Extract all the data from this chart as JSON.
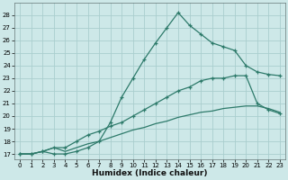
{
  "xlabel": "Humidex (Indice chaleur)",
  "background_color": "#cde8e8",
  "grid_color": "#aacece",
  "line_color": "#2d7a6a",
  "xlim": [
    -0.5,
    23.5
  ],
  "ylim": [
    16.6,
    29.0
  ],
  "xticks": [
    0,
    1,
    2,
    3,
    4,
    5,
    6,
    7,
    8,
    9,
    10,
    11,
    12,
    13,
    14,
    15,
    16,
    17,
    18,
    19,
    20,
    21,
    22,
    23
  ],
  "yticks": [
    17,
    18,
    19,
    20,
    21,
    22,
    23,
    24,
    25,
    26,
    27,
    28
  ],
  "curve1_x": [
    0,
    1,
    2,
    3,
    4,
    5,
    6,
    7,
    8,
    9,
    10,
    11,
    12,
    13,
    14,
    15,
    16,
    17,
    18,
    19,
    20,
    21,
    22,
    23
  ],
  "curve1_y": [
    17.0,
    17.0,
    17.2,
    17.0,
    17.0,
    17.2,
    17.5,
    18.0,
    19.5,
    21.5,
    23.0,
    24.5,
    25.8,
    27.0,
    28.2,
    27.2,
    26.5,
    25.8,
    25.5,
    25.2,
    24.0,
    23.5,
    23.3,
    23.2
  ],
  "curve2_x": [
    0,
    1,
    2,
    3,
    4,
    5,
    6,
    7,
    8,
    9,
    10,
    11,
    12,
    13,
    14,
    15,
    16,
    17,
    18,
    19,
    20,
    21,
    22,
    23
  ],
  "curve2_y": [
    17.0,
    17.0,
    17.2,
    17.5,
    17.5,
    18.0,
    18.5,
    18.8,
    19.2,
    19.5,
    20.0,
    20.5,
    21.0,
    21.5,
    22.0,
    22.3,
    22.8,
    23.0,
    23.0,
    23.2,
    23.2,
    21.0,
    20.5,
    20.2
  ],
  "curve3_x": [
    0,
    1,
    2,
    3,
    4,
    5,
    6,
    7,
    8,
    9,
    10,
    11,
    12,
    13,
    14,
    15,
    16,
    17,
    18,
    19,
    20,
    21,
    22,
    23
  ],
  "curve3_y": [
    17.0,
    17.0,
    17.2,
    17.5,
    17.2,
    17.5,
    17.8,
    18.0,
    18.3,
    18.6,
    18.9,
    19.1,
    19.4,
    19.6,
    19.9,
    20.1,
    20.3,
    20.4,
    20.6,
    20.7,
    20.8,
    20.8,
    20.6,
    20.3
  ],
  "xlabel_fontsize": 6.5,
  "tick_fontsize": 5.0
}
